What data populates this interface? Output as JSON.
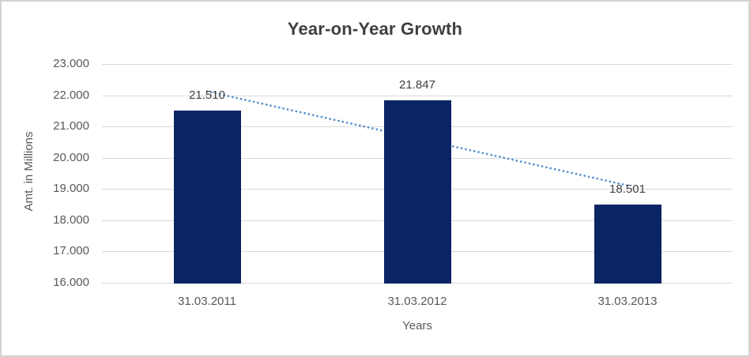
{
  "chart_data": {
    "type": "bar",
    "title": "Year-on-Year Growth",
    "xlabel": "Years",
    "ylabel": "Amt. in Millions",
    "categories": [
      "31.03.2011",
      "31.03.2012",
      "31.03.2013"
    ],
    "values": [
      21510,
      21847,
      18501
    ],
    "value_labels": [
      "21.510",
      "21.847",
      "18.501"
    ],
    "ylim": [
      16000,
      23000
    ],
    "y_ticks": [
      {
        "value": 23000,
        "label": "23.000"
      },
      {
        "value": 22000,
        "label": "22.000"
      },
      {
        "value": 21000,
        "label": "21.000"
      },
      {
        "value": 20000,
        "label": "20.000"
      },
      {
        "value": 19000,
        "label": "19.000"
      },
      {
        "value": 18000,
        "label": "18.000"
      },
      {
        "value": 17000,
        "label": "17.000"
      },
      {
        "value": 16000,
        "label": "16.000"
      }
    ],
    "grid": "horizontal",
    "legend": "none",
    "trendline": {
      "kind": "linear",
      "style": "dotted",
      "color": "#4f8ac9"
    },
    "colors": {
      "bar": "#0a2563",
      "gridline": "#d9d9d9",
      "title_text": "#3f3f3f",
      "axis_text": "#595959",
      "label_text": "#404040",
      "border": "#d2d2d2"
    }
  }
}
